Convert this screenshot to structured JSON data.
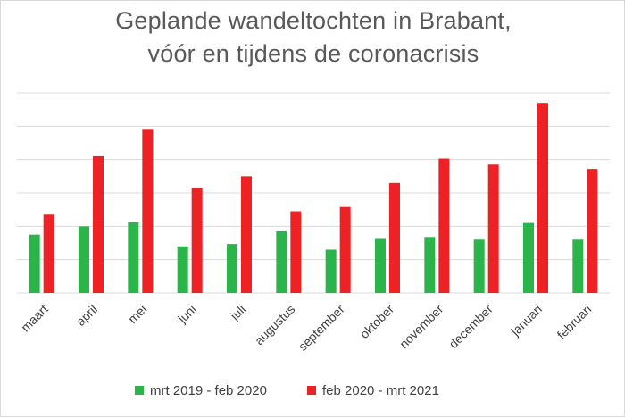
{
  "chart_data": {
    "type": "bar",
    "title_line1": "Geplande wandeltochten in Brabant,",
    "title_line2": "vóór en tijdens de coronacrisis",
    "xlabel": "",
    "ylabel": "",
    "y_tick_labels_visible": false,
    "ylim": [
      0,
      6
    ],
    "grid": true,
    "legend_position": "bottom",
    "categories": [
      "maart",
      "april",
      "mei",
      "juni",
      "juli",
      "augustus",
      "september",
      "oktober",
      "november",
      "december",
      "januari",
      "februari"
    ],
    "series": [
      {
        "name": "mrt 2019 - feb 2020",
        "color": "#2bb44a",
        "values": [
          1.75,
          2.0,
          2.12,
          1.4,
          1.47,
          1.85,
          1.3,
          1.62,
          1.68,
          1.6,
          2.1,
          1.6
        ]
      },
      {
        "name": "feb 2020 - mrt 2021",
        "color": "#ee2224",
        "values": [
          2.35,
          4.1,
          4.92,
          3.15,
          3.5,
          2.45,
          2.58,
          3.3,
          4.03,
          3.85,
          5.7,
          3.72
        ]
      }
    ]
  }
}
